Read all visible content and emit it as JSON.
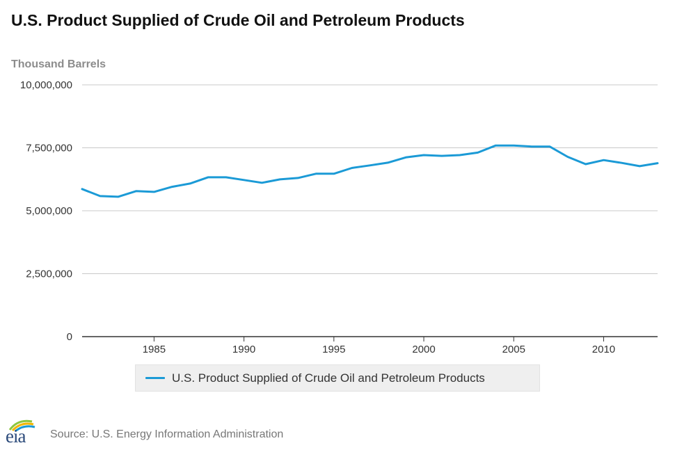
{
  "chart_data": {
    "type": "line",
    "title": "U.S. Product Supplied of Crude Oil and Petroleum Products",
    "ylabel": "Thousand Barrels",
    "xlabel": "",
    "ylim": [
      0,
      10000000
    ],
    "xlim": [
      1981,
      2013
    ],
    "yticks": [
      0,
      2500000,
      5000000,
      7500000,
      10000000
    ],
    "ytick_labels": [
      "0",
      "2,500,000",
      "5,000,000",
      "7,500,000",
      "10,000,000"
    ],
    "xticks": [
      1985,
      1990,
      1995,
      2000,
      2005,
      2010
    ],
    "xtick_labels": [
      "1985",
      "1990",
      "1995",
      "2000",
      "2005",
      "2010"
    ],
    "grid": "horizontal",
    "legend_position": "bottom",
    "x": [
      1981,
      1982,
      1983,
      1984,
      1985,
      1986,
      1987,
      1988,
      1989,
      1990,
      1991,
      1992,
      1993,
      1994,
      1995,
      1996,
      1997,
      1998,
      1999,
      2000,
      2001,
      2002,
      2003,
      2004,
      2005,
      2006,
      2007,
      2008,
      2009,
      2010,
      2011,
      2012,
      2013
    ],
    "series": [
      {
        "name": "U.S. Product Supplied of Crude Oil and Petroleum Products",
        "color": "#1b9ad6",
        "values": [
          5861000,
          5583000,
          5556000,
          5778000,
          5750000,
          5950000,
          6080000,
          6330000,
          6330000,
          6220000,
          6110000,
          6245000,
          6300000,
          6470000,
          6470000,
          6700000,
          6800000,
          6910000,
          7120000,
          7210000,
          7180000,
          7210000,
          7310000,
          7590000,
          7590000,
          7550000,
          7550000,
          7140000,
          6850000,
          7010000,
          6900000,
          6770000,
          6890000
        ]
      }
    ]
  },
  "footer": {
    "logo_text": "eia",
    "source": "Source: U.S. Energy Information Administration"
  }
}
